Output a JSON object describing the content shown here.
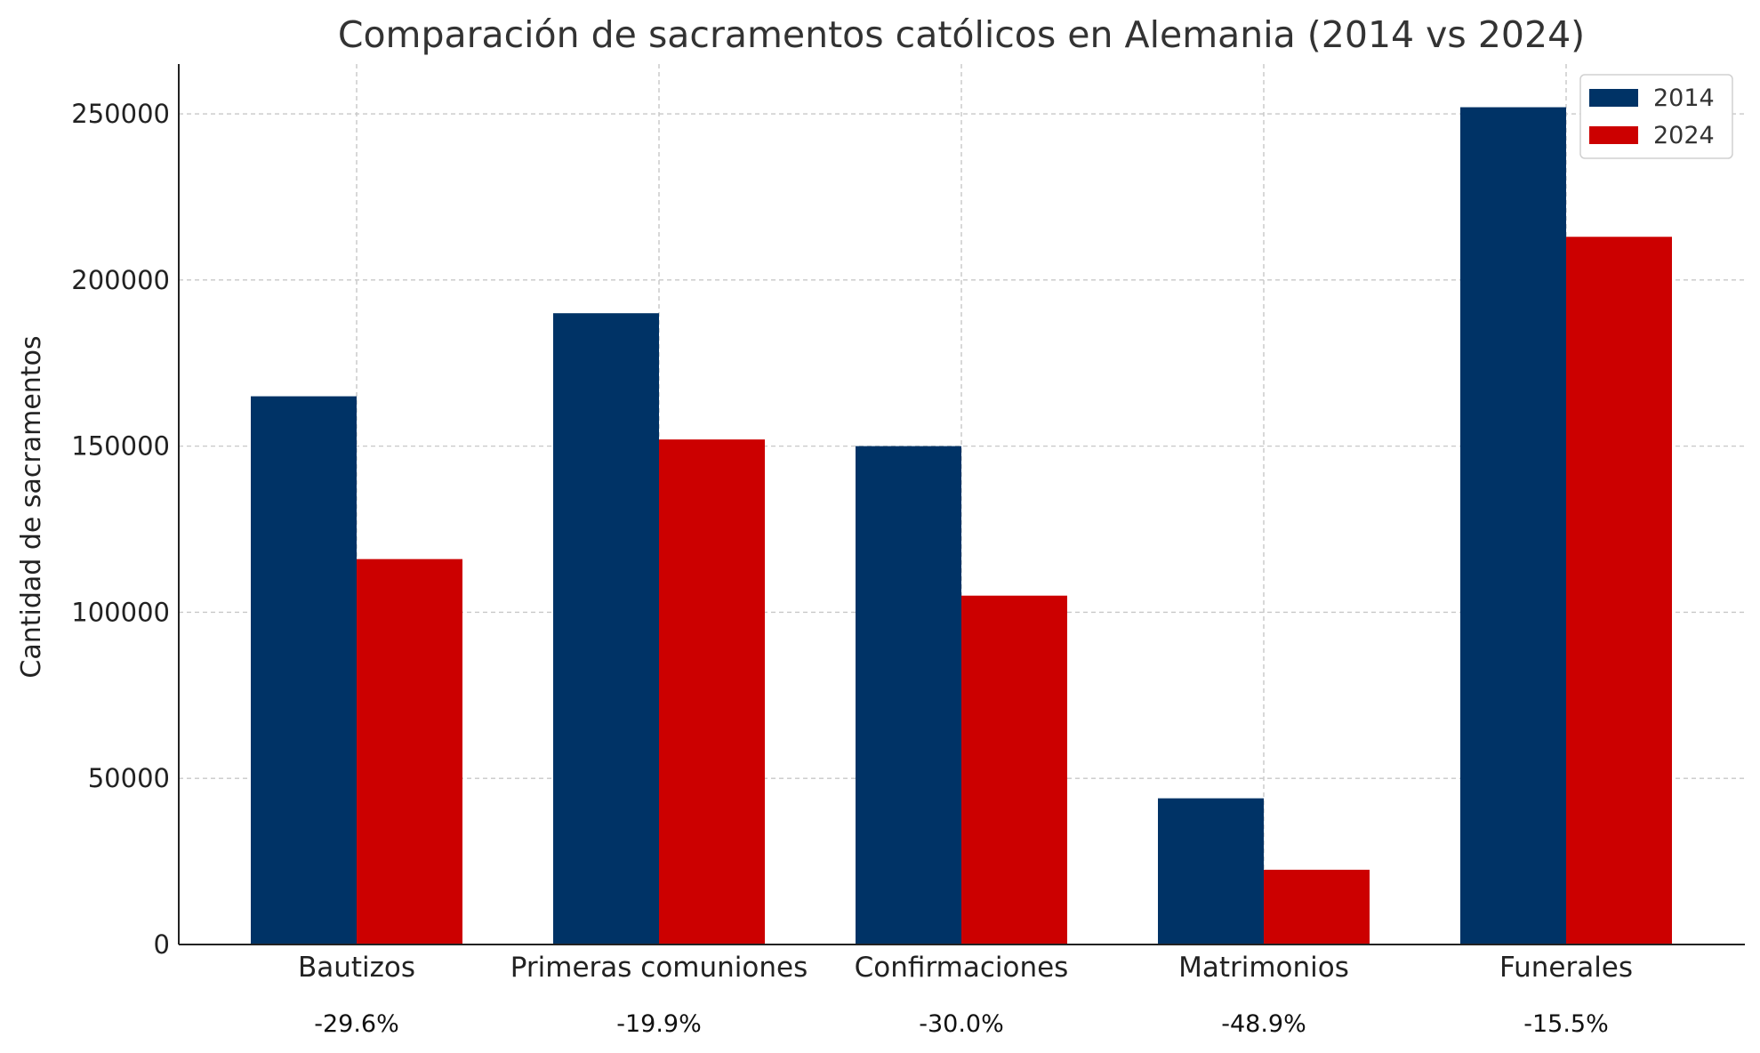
{
  "chart_data": {
    "type": "bar",
    "title": "Comparación de sacramentos católicos en Alemania (2014 vs 2024)",
    "xlabel": "",
    "ylabel": "Cantidad de sacramentos",
    "categories": [
      "Bautizos",
      "Primeras comuniones",
      "Confirmaciones",
      "Matrimonios",
      "Funerales"
    ],
    "series": [
      {
        "name": "2014",
        "color": "#003366",
        "values": [
          165000,
          190000,
          150000,
          44000,
          252000
        ]
      },
      {
        "name": "2024",
        "color": "#CC0000",
        "values": [
          116000,
          152000,
          105000,
          22500,
          213000
        ]
      }
    ],
    "change_labels": [
      "-29.6%",
      "-19.9%",
      "-30.0%",
      "-48.9%",
      "-15.5%"
    ],
    "ylim": [
      0,
      265000
    ],
    "yticks": [
      0,
      50000,
      100000,
      150000,
      200000,
      250000
    ],
    "grid": true,
    "legend_position": "top-right"
  }
}
